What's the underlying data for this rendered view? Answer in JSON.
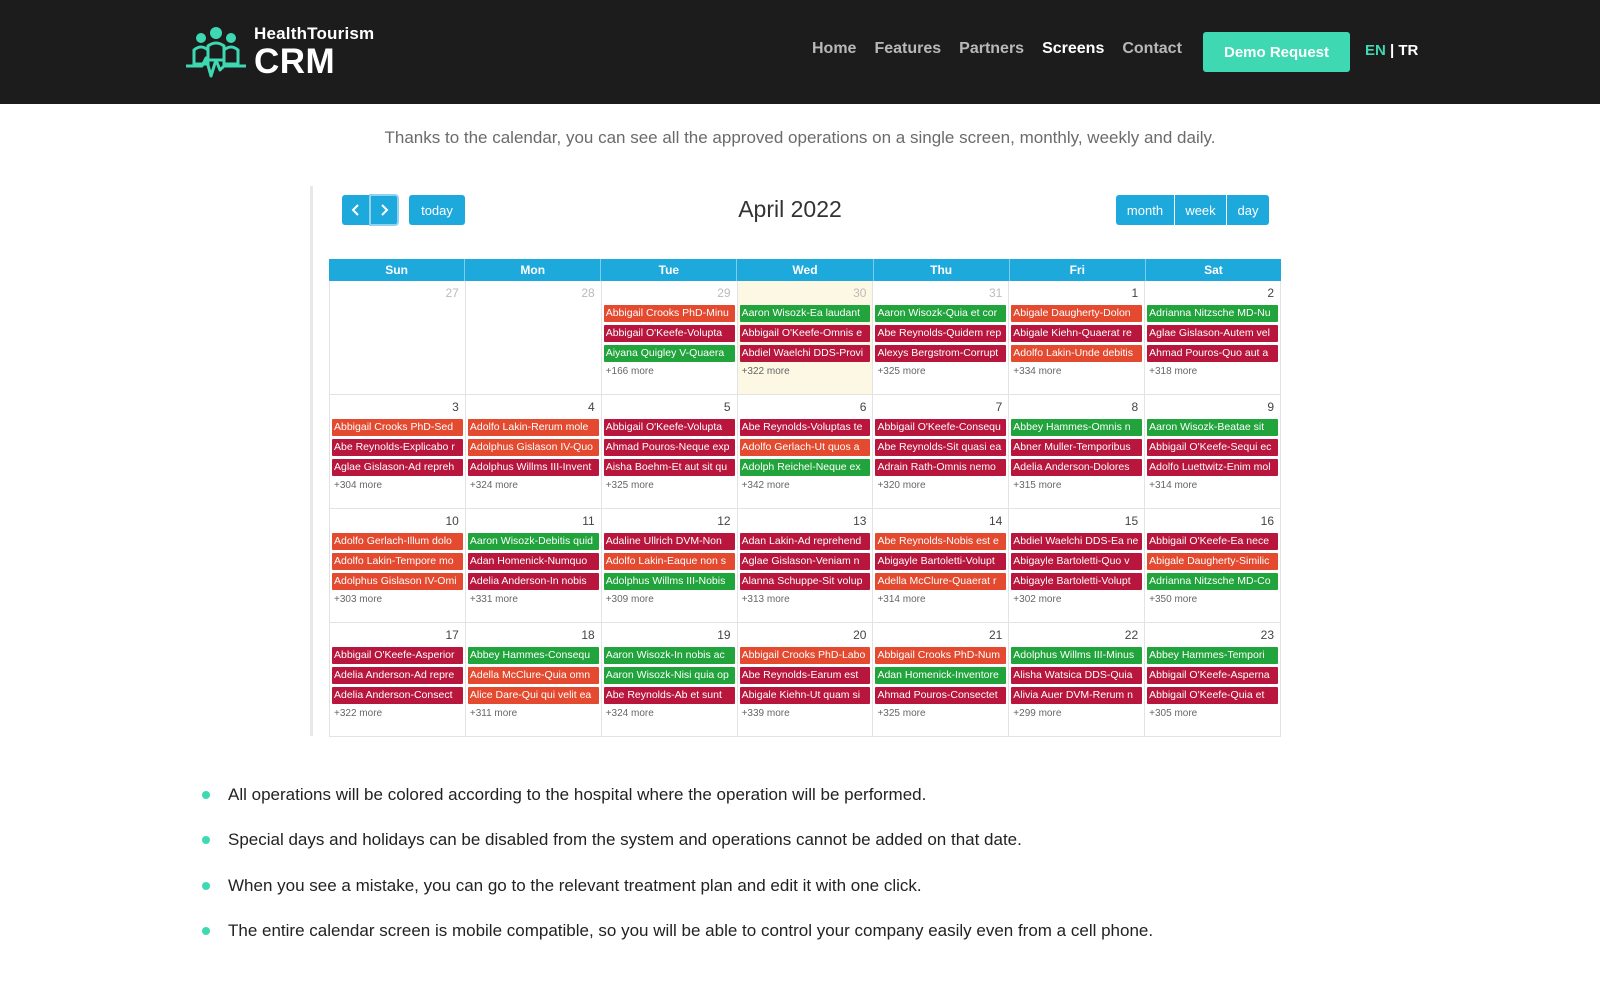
{
  "header": {
    "logo_small": "HealthTourism",
    "logo_big": "CRM",
    "nav": [
      {
        "label": "Home",
        "active": false
      },
      {
        "label": "Features",
        "active": false
      },
      {
        "label": "Partners",
        "active": false
      },
      {
        "label": "Screens",
        "active": true
      },
      {
        "label": "Contact",
        "active": false
      }
    ],
    "demo_button": "Demo Request",
    "lang_en": "EN",
    "lang_sep": " | ",
    "lang_tr": "TR",
    "accent_color": "#3ed8b2"
  },
  "intro": "Thanks to the calendar, you can see all the approved operations on a single screen, monthly, weekly and daily.",
  "calendar": {
    "prev_icon": "chevron-left-icon",
    "next_icon": "chevron-right-icon",
    "today_label": "today",
    "title": "April 2022",
    "views": [
      "month",
      "week",
      "day"
    ],
    "days_of_week": [
      "Sun",
      "Mon",
      "Tue",
      "Wed",
      "Thu",
      "Fri",
      "Sat"
    ],
    "colors": {
      "red": "#e34a2f",
      "green": "#21a43c",
      "crimson": "#b9163d",
      "header": "#1ea9dd"
    },
    "weeks": [
      [
        {
          "num": "27",
          "other": true,
          "events": [],
          "more": ""
        },
        {
          "num": "28",
          "other": true,
          "events": [],
          "more": ""
        },
        {
          "num": "29",
          "other": true,
          "events": [
            {
              "text": "Abbigail Crooks PhD-Minu",
              "color": "red"
            },
            {
              "text": "Abbigail O'Keefe-Volupta",
              "color": "crimson"
            },
            {
              "text": "Aiyana Quigley V-Quaera",
              "color": "green"
            }
          ],
          "more": "+166 more"
        },
        {
          "num": "30",
          "other": true,
          "today": true,
          "events": [
            {
              "text": "Aaron Wisozk-Ea laudant",
              "color": "green"
            },
            {
              "text": "Abbigail O'Keefe-Omnis e",
              "color": "crimson"
            },
            {
              "text": "Abdiel Waelchi DDS-Provi",
              "color": "crimson"
            }
          ],
          "more": "+322 more"
        },
        {
          "num": "31",
          "other": true,
          "events": [
            {
              "text": "Aaron Wisozk-Quia et cor",
              "color": "green"
            },
            {
              "text": "Abe Reynolds-Quidem rep",
              "color": "crimson"
            },
            {
              "text": "Alexys Bergstrom-Corrupt",
              "color": "crimson"
            }
          ],
          "more": "+325 more"
        },
        {
          "num": "1",
          "other": false,
          "events": [
            {
              "text": "Abigale Daugherty-Dolon",
              "color": "red"
            },
            {
              "text": "Abigale Kiehn-Quaerat re",
              "color": "crimson"
            },
            {
              "text": "Adolfo Lakin-Unde debitis",
              "color": "red"
            }
          ],
          "more": "+334 more"
        },
        {
          "num": "2",
          "other": false,
          "events": [
            {
              "text": "Adrianna Nitzsche MD-Nu",
              "color": "green"
            },
            {
              "text": "Aglae Gislason-Autem vel",
              "color": "crimson"
            },
            {
              "text": "Ahmad Pouros-Quo aut a",
              "color": "crimson"
            }
          ],
          "more": "+318 more"
        }
      ],
      [
        {
          "num": "3",
          "other": false,
          "events": [
            {
              "text": "Abbigail Crooks PhD-Sed",
              "color": "red"
            },
            {
              "text": "Abe Reynolds-Explicabo r",
              "color": "crimson"
            },
            {
              "text": "Aglae Gislason-Ad repreh",
              "color": "crimson"
            }
          ],
          "more": "+304 more"
        },
        {
          "num": "4",
          "other": false,
          "events": [
            {
              "text": "Adolfo Lakin-Rerum mole",
              "color": "red"
            },
            {
              "text": "Adolphus Gislason IV-Quo",
              "color": "red"
            },
            {
              "text": "Adolphus Willms III-Invent",
              "color": "crimson"
            }
          ],
          "more": "+324 more"
        },
        {
          "num": "5",
          "other": false,
          "events": [
            {
              "text": "Abbigail O'Keefe-Volupta",
              "color": "crimson"
            },
            {
              "text": "Ahmad Pouros-Neque exp",
              "color": "crimson"
            },
            {
              "text": "Aisha Boehm-Et aut sit qu",
              "color": "crimson"
            }
          ],
          "more": "+325 more"
        },
        {
          "num": "6",
          "other": false,
          "events": [
            {
              "text": "Abe Reynolds-Voluptas te",
              "color": "crimson"
            },
            {
              "text": "Adolfo Gerlach-Ut quos a",
              "color": "red"
            },
            {
              "text": "Adolph Reichel-Neque ex",
              "color": "green"
            }
          ],
          "more": "+342 more"
        },
        {
          "num": "7",
          "other": false,
          "events": [
            {
              "text": "Abbigail O'Keefe-Consequ",
              "color": "crimson"
            },
            {
              "text": "Abe Reynolds-Sit quasi ea",
              "color": "crimson"
            },
            {
              "text": "Adrain Rath-Omnis nemo",
              "color": "crimson"
            }
          ],
          "more": "+320 more"
        },
        {
          "num": "8",
          "other": false,
          "events": [
            {
              "text": "Abbey Hammes-Omnis n",
              "color": "green"
            },
            {
              "text": "Abner Muller-Temporibus",
              "color": "crimson"
            },
            {
              "text": "Adelia Anderson-Dolores",
              "color": "crimson"
            }
          ],
          "more": "+315 more"
        },
        {
          "num": "9",
          "other": false,
          "events": [
            {
              "text": "Aaron Wisozk-Beatae sit",
              "color": "green"
            },
            {
              "text": "Abbigail O'Keefe-Sequi ec",
              "color": "crimson"
            },
            {
              "text": "Adolfo Luettwitz-Enim mol",
              "color": "crimson"
            }
          ],
          "more": "+314 more"
        }
      ],
      [
        {
          "num": "10",
          "other": false,
          "events": [
            {
              "text": "Adolfo Gerlach-Illum dolo",
              "color": "red"
            },
            {
              "text": "Adolfo Lakin-Tempore mo",
              "color": "red"
            },
            {
              "text": "Adolphus Gislason IV-Omi",
              "color": "red"
            }
          ],
          "more": "+303 more"
        },
        {
          "num": "11",
          "other": false,
          "events": [
            {
              "text": "Aaron Wisozk-Debitis quid",
              "color": "green"
            },
            {
              "text": "Adan Homenick-Numquo",
              "color": "crimson"
            },
            {
              "text": "Adelia Anderson-In nobis",
              "color": "crimson"
            }
          ],
          "more": "+331 more"
        },
        {
          "num": "12",
          "other": false,
          "events": [
            {
              "text": "Adaline Ullrich DVM-Non",
              "color": "crimson"
            },
            {
              "text": "Adolfo Lakin-Eaque non s",
              "color": "red"
            },
            {
              "text": "Adolphus Willms III-Nobis",
              "color": "green"
            }
          ],
          "more": "+309 more"
        },
        {
          "num": "13",
          "other": false,
          "events": [
            {
              "text": "Adan Lakin-Ad reprehend",
              "color": "crimson"
            },
            {
              "text": "Aglae Gislason-Veniam n",
              "color": "crimson"
            },
            {
              "text": "Alanna Schuppe-Sit volup",
              "color": "crimson"
            }
          ],
          "more": "+313 more"
        },
        {
          "num": "14",
          "other": false,
          "events": [
            {
              "text": "Abe Reynolds-Nobis est e",
              "color": "red"
            },
            {
              "text": "Abigayle Bartoletti-Volupt",
              "color": "crimson"
            },
            {
              "text": "Adella McClure-Quaerat r",
              "color": "red"
            }
          ],
          "more": "+314 more"
        },
        {
          "num": "15",
          "other": false,
          "events": [
            {
              "text": "Abdiel Waelchi DDS-Ea ne",
              "color": "crimson"
            },
            {
              "text": "Abigayle Bartoletti-Quo v",
              "color": "crimson"
            },
            {
              "text": "Abigayle Bartoletti-Volupt",
              "color": "crimson"
            }
          ],
          "more": "+302 more"
        },
        {
          "num": "16",
          "other": false,
          "events": [
            {
              "text": "Abbigail O'Keefe-Ea nece",
              "color": "crimson"
            },
            {
              "text": "Abigale Daugherty-Similic",
              "color": "red"
            },
            {
              "text": "Adrianna Nitzsche MD-Co",
              "color": "green"
            }
          ],
          "more": "+350 more"
        }
      ],
      [
        {
          "num": "17",
          "other": false,
          "events": [
            {
              "text": "Abbigail O'Keefe-Asperior",
              "color": "crimson"
            },
            {
              "text": "Adelia Anderson-Ad repre",
              "color": "crimson"
            },
            {
              "text": "Adelia Anderson-Consect",
              "color": "crimson"
            }
          ],
          "more": "+322 more"
        },
        {
          "num": "18",
          "other": false,
          "events": [
            {
              "text": "Abbey Hammes-Consequ",
              "color": "green"
            },
            {
              "text": "Adella McClure-Quia omn",
              "color": "red"
            },
            {
              "text": "Alice Dare-Qui qui velit ea",
              "color": "red"
            }
          ],
          "more": "+311 more"
        },
        {
          "num": "19",
          "other": false,
          "events": [
            {
              "text": "Aaron Wisozk-In nobis ac",
              "color": "green"
            },
            {
              "text": "Aaron Wisozk-Nisi quia op",
              "color": "green"
            },
            {
              "text": "Abe Reynolds-Ab et sunt",
              "color": "crimson"
            }
          ],
          "more": "+324 more"
        },
        {
          "num": "20",
          "other": false,
          "events": [
            {
              "text": "Abbigail Crooks PhD-Labo",
              "color": "red"
            },
            {
              "text": "Abe Reynolds-Earum est",
              "color": "crimson"
            },
            {
              "text": "Abigale Kiehn-Ut quam si",
              "color": "crimson"
            }
          ],
          "more": "+339 more"
        },
        {
          "num": "21",
          "other": false,
          "events": [
            {
              "text": "Abbigail Crooks PhD-Num",
              "color": "red"
            },
            {
              "text": "Adan Homenick-Inventore",
              "color": "green"
            },
            {
              "text": "Ahmad Pouros-Consectet",
              "color": "crimson"
            }
          ],
          "more": "+325 more"
        },
        {
          "num": "22",
          "other": false,
          "events": [
            {
              "text": "Adolphus Willms III-Minus",
              "color": "green"
            },
            {
              "text": "Alisha Watsica DDS-Quia",
              "color": "crimson"
            },
            {
              "text": "Alivia Auer DVM-Rerum n",
              "color": "crimson"
            }
          ],
          "more": "+299 more"
        },
        {
          "num": "23",
          "other": false,
          "events": [
            {
              "text": "Abbey Hammes-Tempori",
              "color": "green"
            },
            {
              "text": "Abbigail O'Keefe-Asperna",
              "color": "crimson"
            },
            {
              "text": "Abbigail O'Keefe-Quia et",
              "color": "crimson"
            }
          ],
          "more": "+305 more"
        }
      ]
    ]
  },
  "bullets": [
    "All operations will be colored according to the hospital where the operation will be performed.",
    "Special days and holidays can be disabled from the system and operations cannot be added on that date.",
    "When you see a mistake, you can go to the relevant treatment plan and edit it with one click.",
    "The entire calendar screen is mobile compatible, so you will be able to control your company easily even from a cell phone."
  ]
}
